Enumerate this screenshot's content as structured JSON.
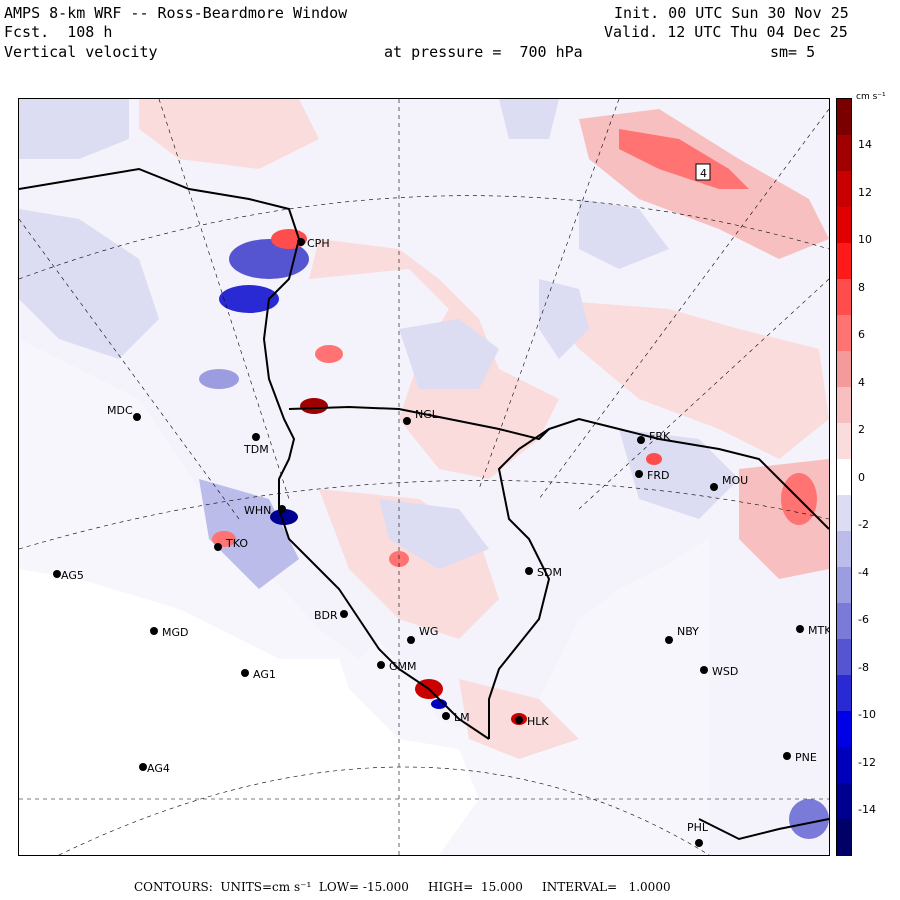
{
  "header": {
    "line1_left": "AMPS 8-km WRF -- Ross-Beardmore Window",
    "line2_left": "Fcst.  108 h",
    "line3_left": "Vertical velocity",
    "line1_right": "Init. 00 UTC Sun 30 Nov 25",
    "line2_right": "Valid. 12 UTC Thu 04 Dec 25",
    "pressure": "at pressure =  700 hPa",
    "smoothing": "sm= 5"
  },
  "map": {
    "stations": [
      "CPH",
      "MDC",
      "TDM",
      "NGL",
      "FRK",
      "FRD",
      "MOU",
      "WHN",
      "TKO",
      "AG5",
      "SDM",
      "BDR",
      "MGD",
      "NBY",
      "MTK",
      "WG",
      "AG1",
      "GMM",
      "WSD",
      "LM",
      "HLK",
      "AG4",
      "PNE",
      "PHL"
    ],
    "box_label": "4"
  },
  "colorbar": {
    "units": "cm s⁻¹",
    "ticks": [
      "14",
      "12",
      "10",
      "8",
      "6",
      "4",
      "2",
      "0",
      "-2",
      "-4",
      "-6",
      "-8",
      "-10",
      "-12",
      "-14"
    ],
    "colors": [
      "#7a0000",
      "#a00000",
      "#c80000",
      "#e00000",
      "#ff1a1a",
      "#ff4d4d",
      "#ff7373",
      "#f59a9a",
      "#f7bfbf",
      "#fadcdc",
      "#ffffff",
      "#dcdcf2",
      "#bcbcea",
      "#9c9ce0",
      "#7a7ad8",
      "#5555d2",
      "#2a2ad4",
      "#0000e6",
      "#0000bb",
      "#000090",
      "#000066"
    ]
  },
  "footer": {
    "contours": "CONTOURS:  UNITS=cm s⁻¹  LOW= -15.000     HIGH=  15.000     INTERVAL=   1.0000"
  },
  "colors": {
    "bg_field": "#f4f3fb",
    "pos_light": "#fadcdc",
    "neg_light": "#dcdcf2"
  }
}
